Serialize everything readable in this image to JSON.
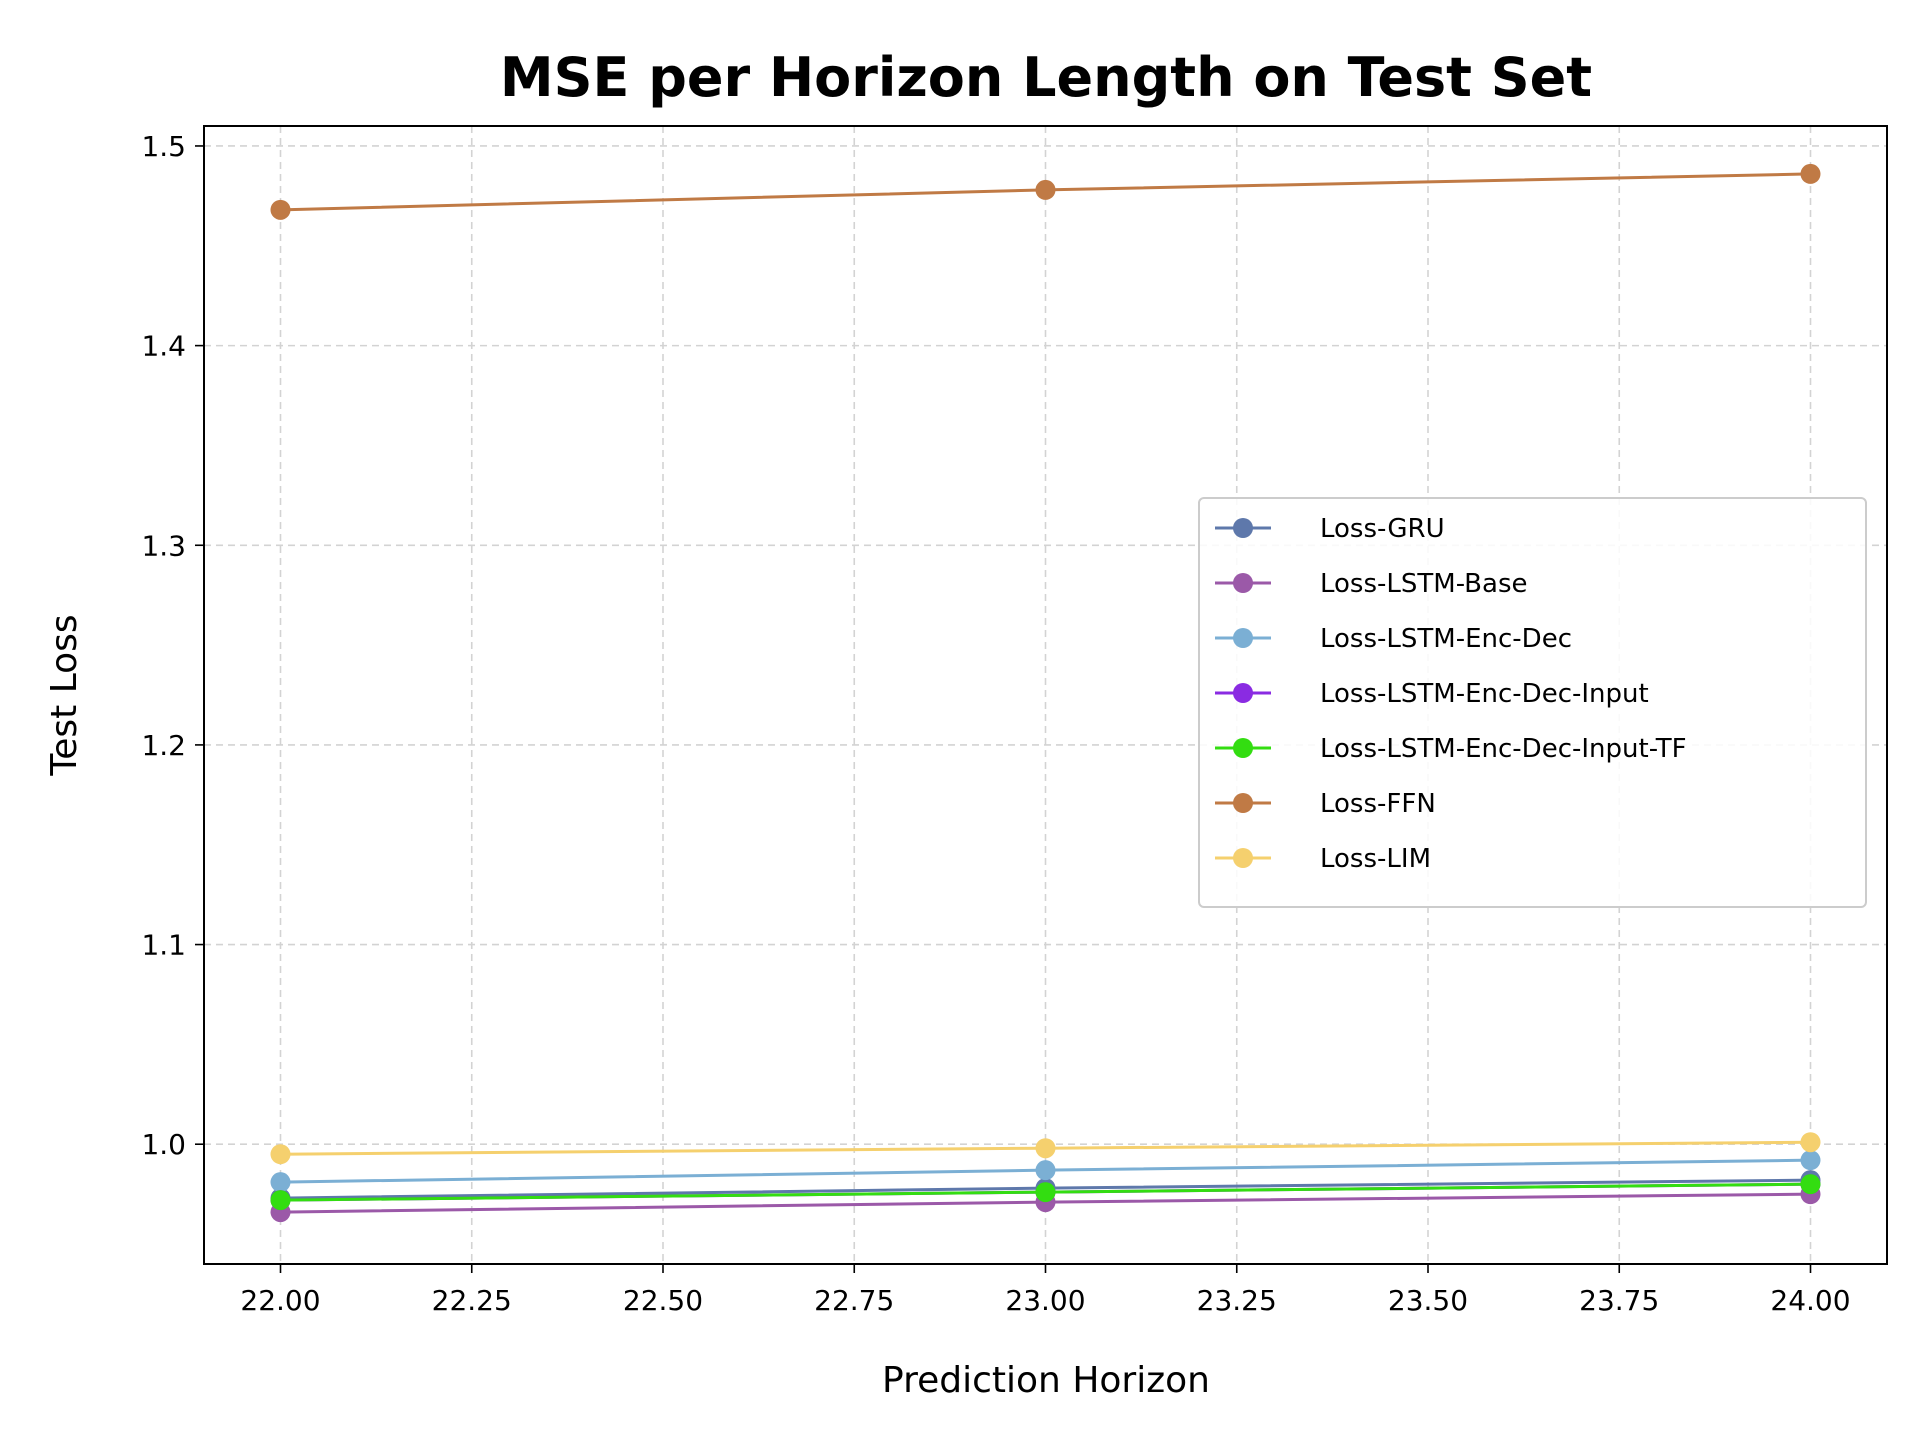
{
  "chart_data": {
    "type": "line",
    "title": "MSE per Horizon Length on Test Set",
    "xlabel": "Prediction Horizon",
    "ylabel": "Test Loss",
    "x": [
      22,
      23,
      24
    ],
    "xlim": [
      21.9,
      24.1
    ],
    "ylim": [
      0.94,
      1.51
    ],
    "xticks": [
      22.0,
      22.25,
      22.5,
      22.75,
      23.0,
      23.25,
      23.5,
      23.75,
      24.0
    ],
    "xtick_labels": [
      "22.00",
      "22.25",
      "22.50",
      "22.75",
      "23.00",
      "23.25",
      "23.50",
      "23.75",
      "24.00"
    ],
    "yticks": [
      1.0,
      1.1,
      1.2,
      1.3,
      1.4,
      1.5
    ],
    "ytick_labels": [
      "1.0",
      "1.1",
      "1.2",
      "1.3",
      "1.4",
      "1.5"
    ],
    "grid": true,
    "legend_position": "center-right",
    "series": [
      {
        "name": "Loss-GRU",
        "color": "#5e78ab",
        "values": [
          0.973,
          0.978,
          0.982
        ]
      },
      {
        "name": "Loss-LSTM-Base",
        "color": "#9b59a8",
        "values": [
          0.966,
          0.971,
          0.975
        ]
      },
      {
        "name": "Loss-LSTM-Enc-Dec",
        "color": "#7bafd4",
        "values": [
          0.981,
          0.987,
          0.992
        ]
      },
      {
        "name": "Loss-LSTM-Enc-Dec-Input",
        "color": "#8a2be2",
        "values": [
          0.972,
          0.976,
          0.98
        ]
      },
      {
        "name": "Loss-LSTM-Enc-Dec-Input-TF",
        "color": "#33dd11",
        "values": [
          0.972,
          0.976,
          0.98
        ]
      },
      {
        "name": "Loss-FFN",
        "color": "#c07a45",
        "values": [
          1.468,
          1.478,
          1.486
        ]
      },
      {
        "name": "Loss-LIM",
        "color": "#f5d06e",
        "values": [
          0.995,
          0.998,
          1.001
        ]
      }
    ]
  }
}
